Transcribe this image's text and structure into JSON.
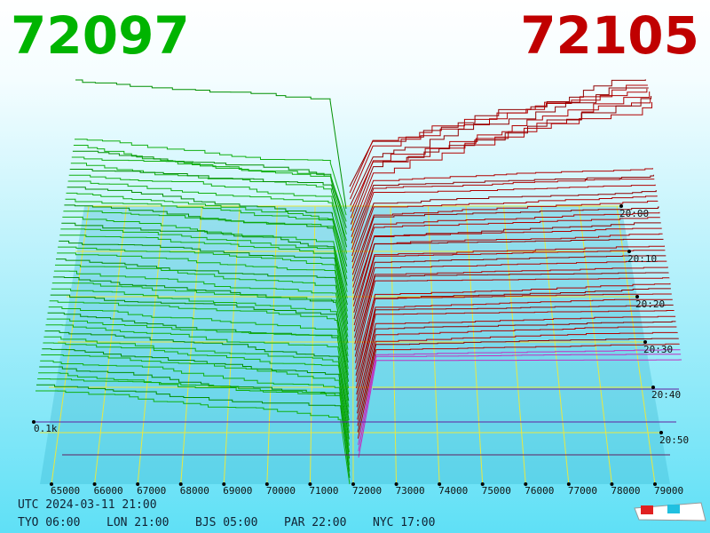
{
  "header": {
    "bid": "72097",
    "ask": "72105"
  },
  "price_axis": {
    "labels": [
      "65000",
      "66000",
      "67000",
      "68000",
      "69000",
      "70000",
      "71000",
      "72000",
      "73000",
      "74000",
      "75000",
      "76000",
      "77000",
      "78000",
      "79000"
    ]
  },
  "time_axis": {
    "labels": [
      "20:00",
      "20:10",
      "20:20",
      "20:30",
      "20:40",
      "20:50"
    ]
  },
  "depth_axis": {
    "label": "0.1k"
  },
  "footer": {
    "utc": "UTC 2024-03-11 21:00",
    "zones": [
      "TYO 06:00",
      "LON 21:00",
      "BJS 05:00",
      "PAR 22:00",
      "NYC 17:00"
    ]
  }
}
